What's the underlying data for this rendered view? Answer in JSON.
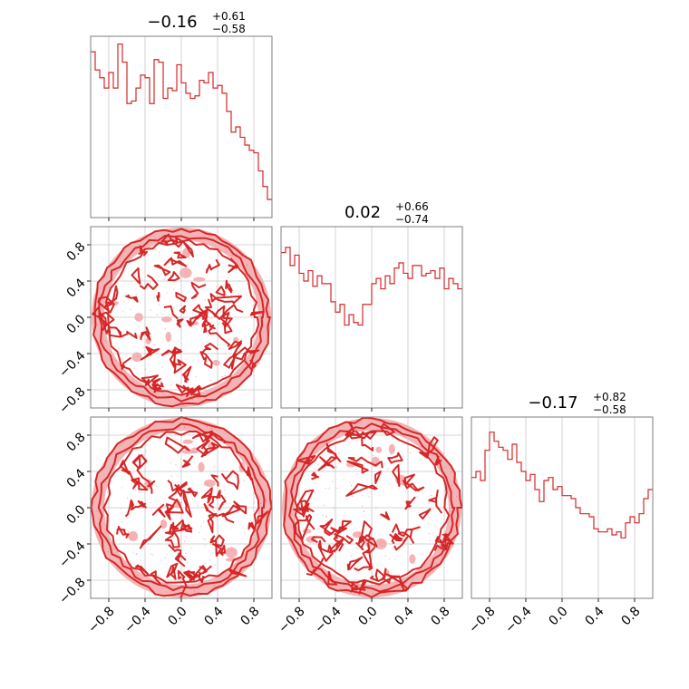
{
  "chart_data": {
    "type": "corner",
    "color": "#d62728",
    "fill_color": "#f4a6a8",
    "range": [
      -1,
      1
    ],
    "ticks": [
      -0.8,
      -0.4,
      0.0,
      0.4,
      0.8
    ],
    "tick_labels": [
      "−0.8",
      "−0.4",
      "0.0",
      "0.4",
      "0.8"
    ],
    "grid": true,
    "parameters": [
      {
        "median": "−0.16",
        "plus": "+0.61",
        "minus": "−0.58"
      },
      {
        "median": "0.02",
        "plus": "+0.66",
        "minus": "−0.74"
      },
      {
        "median": "−0.17",
        "plus": "+0.82",
        "minus": "−0.58"
      }
    ],
    "histograms": [
      {
        "bin_count": 40,
        "counts": [
          64,
          57,
          54,
          50,
          56,
          50,
          67,
          60,
          44,
          45,
          50,
          55,
          54,
          44,
          61,
          60,
          46,
          50,
          49,
          59,
          52,
          48,
          46,
          47,
          53,
          52,
          56,
          50,
          51,
          48,
          41,
          33,
          35,
          31,
          28,
          26,
          25,
          18,
          12,
          7
        ],
        "max": 70
      },
      {
        "bin_count": 40,
        "counts": [
          60,
          62,
          55,
          59,
          52,
          49,
          53,
          47,
          51,
          48,
          48,
          41,
          37,
          40,
          32,
          36,
          33,
          32,
          40,
          40,
          48,
          50,
          46,
          51,
          48,
          54,
          56,
          52,
          50,
          55,
          55,
          51,
          52,
          53,
          50,
          54,
          46,
          50,
          48,
          46
        ],
        "max": 70
      },
      {
        "bin_count": 40,
        "counts": [
          40,
          42,
          39,
          49,
          55,
          52,
          50,
          49,
          46,
          51,
          45,
          42,
          39,
          41,
          36,
          32,
          39,
          40,
          36,
          37,
          34,
          34,
          33,
          30,
          28,
          28,
          27,
          23,
          22,
          22,
          23,
          21,
          22,
          20,
          25,
          27,
          25,
          28,
          33,
          36
        ],
        "max": 60
      }
    ],
    "contour_panels": [
      {
        "row": 1,
        "col": 0,
        "x_param": 0,
        "y_param": 1
      },
      {
        "row": 2,
        "col": 0,
        "x_param": 0,
        "y_param": 2
      },
      {
        "row": 2,
        "col": 1,
        "x_param": 1,
        "y_param": 2
      }
    ]
  }
}
